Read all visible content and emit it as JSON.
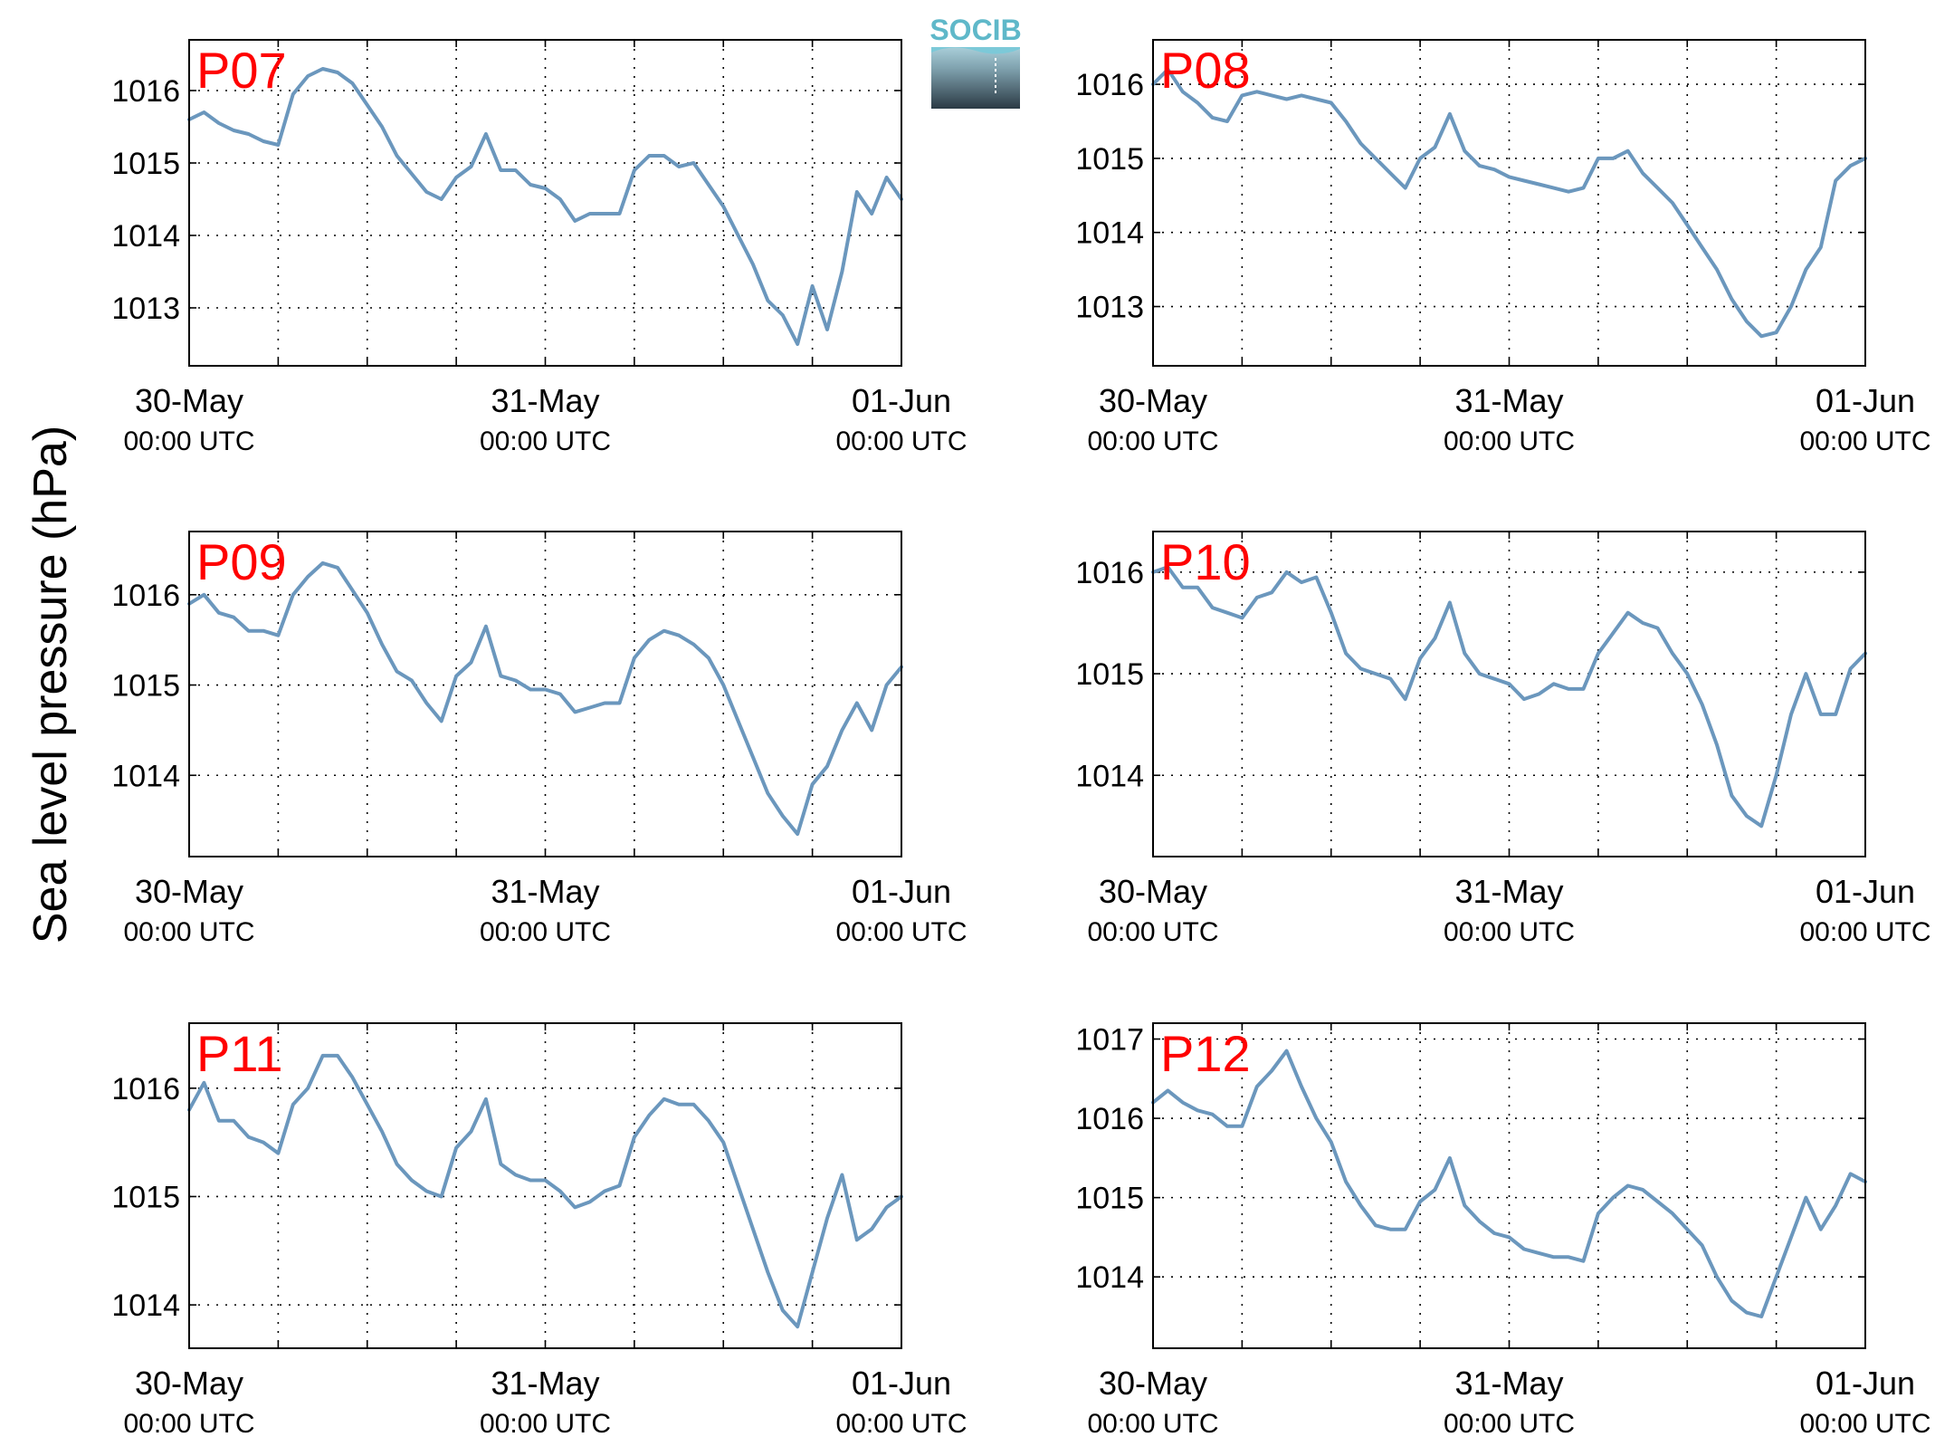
{
  "logo": {
    "text": "SOCIB"
  },
  "ylabel": "Sea level pressure (hPa)",
  "colors": {
    "line": "#6b97bd",
    "label": "#ff0000",
    "grid": "#000000"
  },
  "chart_data": [
    {
      "type": "line",
      "title": "P07",
      "ylim": [
        1012.2,
        1016.7
      ],
      "yticks": [
        1013,
        1014,
        1015,
        1016
      ],
      "xticks": [
        {
          "x": 0,
          "date": "30-May",
          "time": "00:00 UTC"
        },
        {
          "x": 24,
          "date": "31-May",
          "time": "00:00 UTC"
        },
        {
          "x": 48,
          "date": "01-Jun",
          "time": "00:00 UTC"
        }
      ],
      "x": [
        0,
        1,
        2,
        3,
        4,
        5,
        6,
        7,
        8,
        9,
        10,
        11,
        12,
        13,
        14,
        15,
        16,
        17,
        18,
        19,
        20,
        21,
        22,
        23,
        24,
        25,
        26,
        27,
        28,
        29,
        30,
        31,
        32,
        33,
        34,
        35,
        36,
        37,
        38,
        39,
        40,
        41,
        42,
        43,
        44,
        45,
        46,
        47,
        48
      ],
      "values": [
        1015.6,
        1015.7,
        1015.55,
        1015.45,
        1015.4,
        1015.3,
        1015.25,
        1015.95,
        1016.2,
        1016.3,
        1016.25,
        1016.1,
        1015.8,
        1015.5,
        1015.1,
        1014.85,
        1014.6,
        1014.5,
        1014.8,
        1014.95,
        1015.4,
        1014.9,
        1014.9,
        1014.7,
        1014.65,
        1014.5,
        1014.2,
        1014.3,
        1014.3,
        1014.3,
        1014.9,
        1015.1,
        1015.1,
        1014.95,
        1015.0,
        1014.7,
        1014.4,
        1014.0,
        1013.6,
        1013.1,
        1012.9,
        1012.5,
        1013.3,
        1012.7,
        1013.5,
        1014.6,
        1014.3,
        1014.8,
        1014.5
      ]
    },
    {
      "type": "line",
      "title": "P08",
      "ylim": [
        1012.2,
        1016.6
      ],
      "yticks": [
        1013,
        1014,
        1015,
        1016
      ],
      "xticks": [
        {
          "x": 0,
          "date": "30-May",
          "time": "00:00 UTC"
        },
        {
          "x": 24,
          "date": "31-May",
          "time": "00:00 UTC"
        },
        {
          "x": 48,
          "date": "01-Jun",
          "time": "00:00 UTC"
        }
      ],
      "x": [
        0,
        1,
        2,
        3,
        4,
        5,
        6,
        7,
        8,
        9,
        10,
        11,
        12,
        13,
        14,
        15,
        16,
        17,
        18,
        19,
        20,
        21,
        22,
        23,
        24,
        25,
        26,
        27,
        28,
        29,
        30,
        31,
        32,
        33,
        34,
        35,
        36,
        37,
        38,
        39,
        40,
        41,
        42,
        43,
        44,
        45,
        46,
        47,
        48
      ],
      "values": [
        1016.0,
        1016.2,
        1015.9,
        1015.75,
        1015.55,
        1015.5,
        1015.85,
        1015.9,
        1015.85,
        1015.8,
        1015.85,
        1015.8,
        1015.75,
        1015.5,
        1015.2,
        1015.0,
        1014.8,
        1014.6,
        1015.0,
        1015.15,
        1015.6,
        1015.1,
        1014.9,
        1014.85,
        1014.75,
        1014.7,
        1014.65,
        1014.6,
        1014.55,
        1014.6,
        1015.0,
        1015.0,
        1015.1,
        1014.8,
        1014.6,
        1014.4,
        1014.1,
        1013.8,
        1013.5,
        1013.1,
        1012.8,
        1012.6,
        1012.65,
        1013.0,
        1013.5,
        1013.8,
        1014.7,
        1014.9,
        1015.0
      ]
    },
    {
      "type": "line",
      "title": "P09",
      "ylim": [
        1013.1,
        1016.7
      ],
      "yticks": [
        1014,
        1015,
        1016
      ],
      "xticks": [
        {
          "x": 0,
          "date": "30-May",
          "time": "00:00 UTC"
        },
        {
          "x": 24,
          "date": "31-May",
          "time": "00:00 UTC"
        },
        {
          "x": 48,
          "date": "01-Jun",
          "time": "00:00 UTC"
        }
      ],
      "x": [
        0,
        1,
        2,
        3,
        4,
        5,
        6,
        7,
        8,
        9,
        10,
        11,
        12,
        13,
        14,
        15,
        16,
        17,
        18,
        19,
        20,
        21,
        22,
        23,
        24,
        25,
        26,
        27,
        28,
        29,
        30,
        31,
        32,
        33,
        34,
        35,
        36,
        37,
        38,
        39,
        40,
        41,
        42,
        43,
        44,
        45,
        46,
        47,
        48
      ],
      "values": [
        1015.9,
        1016.0,
        1015.8,
        1015.75,
        1015.6,
        1015.6,
        1015.55,
        1016.0,
        1016.2,
        1016.35,
        1016.3,
        1016.05,
        1015.8,
        1015.45,
        1015.15,
        1015.05,
        1014.8,
        1014.6,
        1015.1,
        1015.25,
        1015.65,
        1015.1,
        1015.05,
        1014.95,
        1014.95,
        1014.9,
        1014.7,
        1014.75,
        1014.8,
        1014.8,
        1015.3,
        1015.5,
        1015.6,
        1015.55,
        1015.45,
        1015.3,
        1015.0,
        1014.6,
        1014.2,
        1013.8,
        1013.55,
        1013.35,
        1013.9,
        1014.1,
        1014.5,
        1014.8,
        1014.5,
        1015.0,
        1015.2
      ]
    },
    {
      "type": "line",
      "title": "P10",
      "ylim": [
        1013.2,
        1016.4
      ],
      "yticks": [
        1014,
        1015,
        1016
      ],
      "xticks": [
        {
          "x": 0,
          "date": "30-May",
          "time": "00:00 UTC"
        },
        {
          "x": 24,
          "date": "31-May",
          "time": "00:00 UTC"
        },
        {
          "x": 48,
          "date": "01-Jun",
          "time": "00:00 UTC"
        }
      ],
      "x": [
        0,
        1,
        2,
        3,
        4,
        5,
        6,
        7,
        8,
        9,
        10,
        11,
        12,
        13,
        14,
        15,
        16,
        17,
        18,
        19,
        20,
        21,
        22,
        23,
        24,
        25,
        26,
        27,
        28,
        29,
        30,
        31,
        32,
        33,
        34,
        35,
        36,
        37,
        38,
        39,
        40,
        41,
        42,
        43,
        44,
        45,
        46,
        47,
        48
      ],
      "values": [
        1016.0,
        1016.05,
        1015.85,
        1015.85,
        1015.65,
        1015.6,
        1015.55,
        1015.75,
        1015.8,
        1016.0,
        1015.9,
        1015.95,
        1015.6,
        1015.2,
        1015.05,
        1015.0,
        1014.95,
        1014.75,
        1015.15,
        1015.35,
        1015.7,
        1015.2,
        1015.0,
        1014.95,
        1014.9,
        1014.75,
        1014.8,
        1014.9,
        1014.85,
        1014.85,
        1015.2,
        1015.4,
        1015.6,
        1015.5,
        1015.45,
        1015.2,
        1015.0,
        1014.7,
        1014.3,
        1013.8,
        1013.6,
        1013.5,
        1014.0,
        1014.6,
        1015.0,
        1014.6,
        1014.6,
        1015.05,
        1015.2
      ]
    },
    {
      "type": "line",
      "title": "P11",
      "ylim": [
        1013.6,
        1016.6
      ],
      "yticks": [
        1014,
        1015,
        1016
      ],
      "xticks": [
        {
          "x": 0,
          "date": "30-May",
          "time": "00:00 UTC"
        },
        {
          "x": 24,
          "date": "31-May",
          "time": "00:00 UTC"
        },
        {
          "x": 48,
          "date": "01-Jun",
          "time": "00:00 UTC"
        }
      ],
      "x": [
        0,
        1,
        2,
        3,
        4,
        5,
        6,
        7,
        8,
        9,
        10,
        11,
        12,
        13,
        14,
        15,
        16,
        17,
        18,
        19,
        20,
        21,
        22,
        23,
        24,
        25,
        26,
        27,
        28,
        29,
        30,
        31,
        32,
        33,
        34,
        35,
        36,
        37,
        38,
        39,
        40,
        41,
        42,
        43,
        44,
        45,
        46,
        47,
        48
      ],
      "values": [
        1015.8,
        1016.05,
        1015.7,
        1015.7,
        1015.55,
        1015.5,
        1015.4,
        1015.85,
        1016.0,
        1016.3,
        1016.3,
        1016.1,
        1015.85,
        1015.6,
        1015.3,
        1015.15,
        1015.05,
        1015.0,
        1015.45,
        1015.6,
        1015.9,
        1015.3,
        1015.2,
        1015.15,
        1015.15,
        1015.05,
        1014.9,
        1014.95,
        1015.05,
        1015.1,
        1015.55,
        1015.75,
        1015.9,
        1015.85,
        1015.85,
        1015.7,
        1015.5,
        1015.1,
        1014.7,
        1014.3,
        1013.95,
        1013.8,
        1014.3,
        1014.8,
        1015.2,
        1014.6,
        1014.7,
        1014.9,
        1015.0
      ]
    },
    {
      "type": "line",
      "title": "P12",
      "ylim": [
        1013.1,
        1017.2
      ],
      "yticks": [
        1014,
        1015,
        1016,
        1017
      ],
      "xticks": [
        {
          "x": 0,
          "date": "30-May",
          "time": "00:00 UTC"
        },
        {
          "x": 24,
          "date": "31-May",
          "time": "00:00 UTC"
        },
        {
          "x": 48,
          "date": "01-Jun",
          "time": "00:00 UTC"
        }
      ],
      "x": [
        0,
        1,
        2,
        3,
        4,
        5,
        6,
        7,
        8,
        9,
        10,
        11,
        12,
        13,
        14,
        15,
        16,
        17,
        18,
        19,
        20,
        21,
        22,
        23,
        24,
        25,
        26,
        27,
        28,
        29,
        30,
        31,
        32,
        33,
        34,
        35,
        36,
        37,
        38,
        39,
        40,
        41,
        42,
        43,
        44,
        45,
        46,
        47,
        48
      ],
      "values": [
        1016.2,
        1016.35,
        1016.2,
        1016.1,
        1016.05,
        1015.9,
        1015.9,
        1016.4,
        1016.6,
        1016.85,
        1016.4,
        1016.0,
        1015.7,
        1015.2,
        1014.9,
        1014.65,
        1014.6,
        1014.6,
        1014.95,
        1015.1,
        1015.5,
        1014.9,
        1014.7,
        1014.55,
        1014.5,
        1014.35,
        1014.3,
        1014.25,
        1014.25,
        1014.2,
        1014.8,
        1015.0,
        1015.15,
        1015.1,
        1014.95,
        1014.8,
        1014.6,
        1014.4,
        1014.0,
        1013.7,
        1013.55,
        1013.5,
        1014.0,
        1014.5,
        1015.0,
        1014.6,
        1014.9,
        1015.3,
        1015.2
      ]
    }
  ]
}
